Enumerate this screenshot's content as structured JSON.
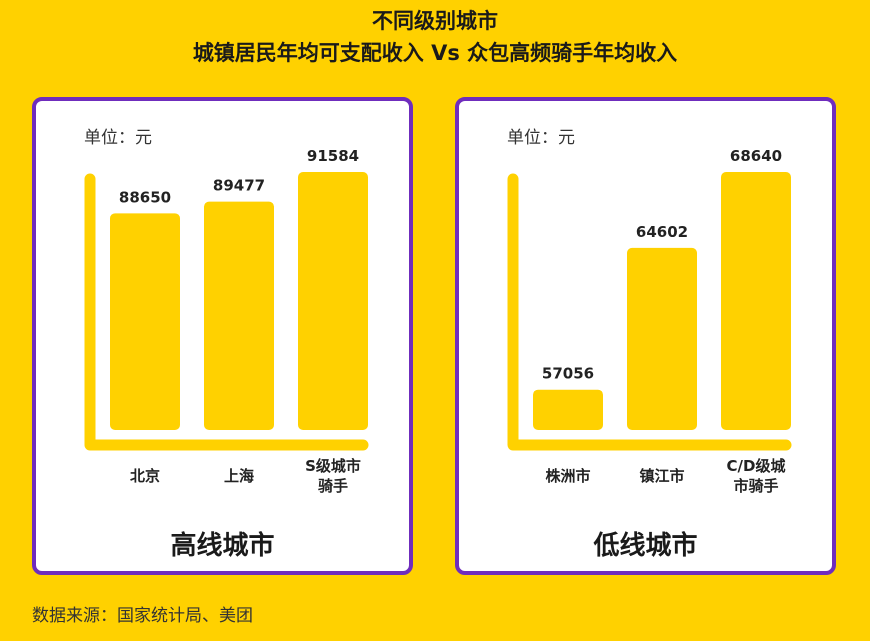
{
  "title_line1": "不同级别城市",
  "title_line2": "城镇居民年均可支配收入 Vs 众包高频骑手年均收入",
  "source": "数据来源：国家统计局、美团",
  "colors": {
    "background": "#FFD100",
    "bar": "#FFD100",
    "border": "#6F2DBD",
    "panel": "#FFFFFF"
  },
  "chart_data": [
    {
      "type": "bar",
      "panel_title": "高线城市",
      "unit": "单位：元",
      "categories": [
        [
          "北京"
        ],
        [
          "上海"
        ],
        [
          "S级城市",
          "骑手"
        ]
      ],
      "values": [
        88650,
        89477,
        91584
      ]
    },
    {
      "type": "bar",
      "panel_title": "低线城市",
      "unit": "单位：元",
      "categories": [
        [
          "株洲市"
        ],
        [
          "镇江市"
        ],
        [
          "C/D级城",
          "市骑手"
        ]
      ],
      "values": [
        57056,
        64602,
        68640
      ]
    }
  ]
}
